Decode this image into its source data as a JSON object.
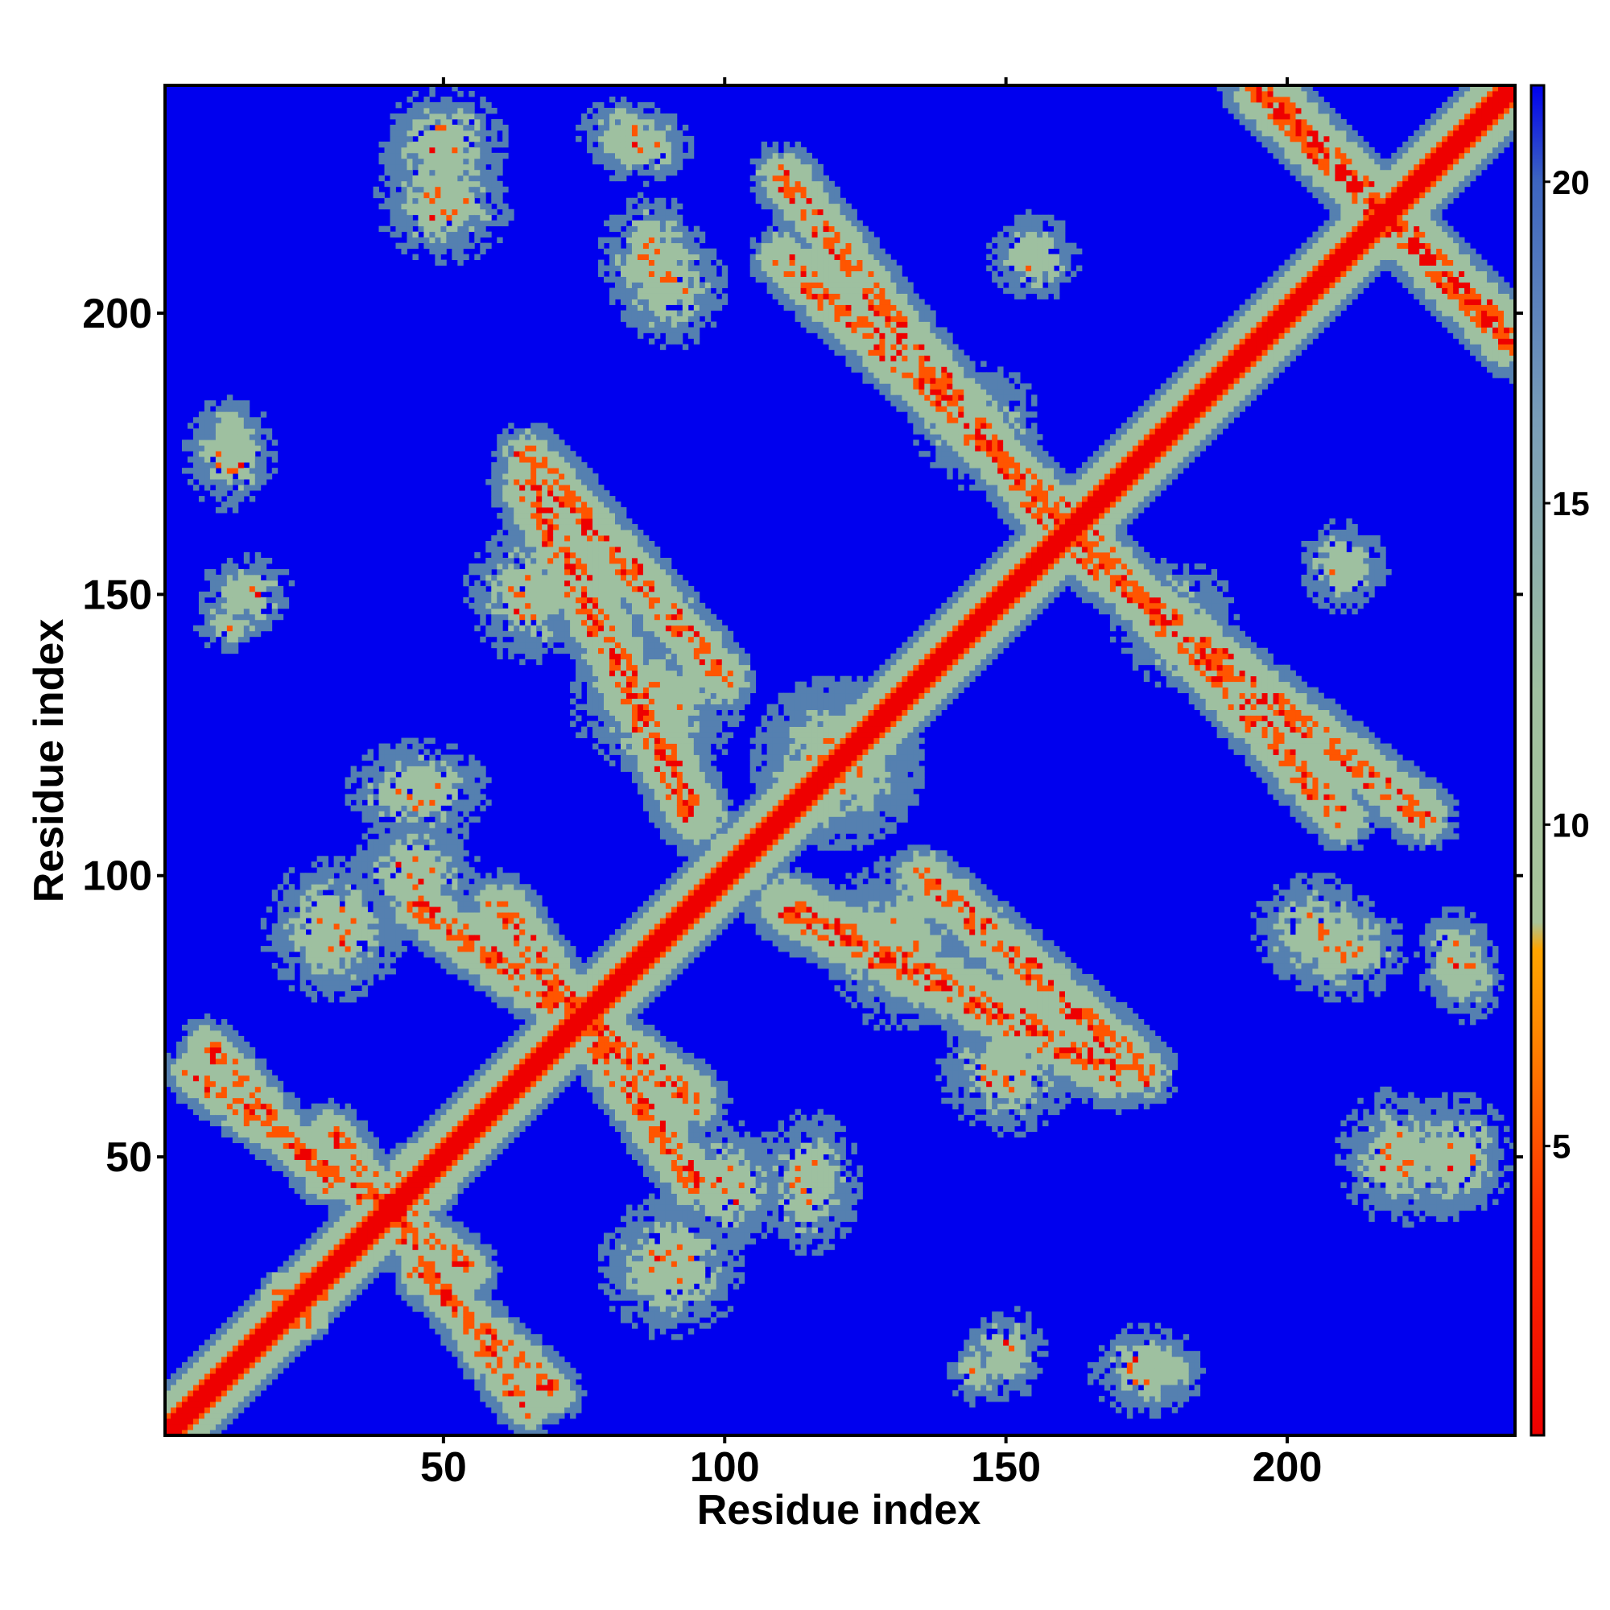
{
  "chart_data": {
    "type": "heatmap",
    "title": "",
    "xlabel": "Residue index",
    "ylabel": "Residue index",
    "n_residues": 240,
    "xlim": [
      1,
      240
    ],
    "ylim": [
      1,
      240
    ],
    "x_ticks": [
      50,
      100,
      150,
      200
    ],
    "y_ticks": [
      50,
      100,
      150,
      200
    ],
    "colorbar": {
      "range": [
        0.5,
        21.5
      ],
      "ticks": [
        5,
        10,
        15,
        20
      ],
      "colors": {
        "high": "#0000ee",
        "upper": "#5580b0",
        "mid": "#9ec0a0",
        "orange": "#ff9900",
        "orange_red": "#ff5500",
        "red": "#ee0000"
      }
    },
    "contact_blocks": [
      {
        "x": 12,
        "y": 180,
        "w": 10,
        "h": 10
      },
      {
        "x": 12,
        "y": 145,
        "w": 12,
        "h": 10
      },
      {
        "x": 50,
        "y": 230,
        "w": 22,
        "h": 20
      },
      {
        "x": 82,
        "y": 232,
        "w": 16,
        "h": 12
      },
      {
        "x": 87,
        "y": 210,
        "w": 18,
        "h": 22
      },
      {
        "x": 155,
        "y": 210,
        "w": 16,
        "h": 16
      },
      {
        "x": 45,
        "y": 115,
        "w": 25,
        "h": 18
      },
      {
        "x": 88,
        "y": 130,
        "w": 30,
        "h": 25
      },
      {
        "x": 100,
        "y": 45,
        "w": 22,
        "h": 22
      },
      {
        "x": 150,
        "y": 65,
        "w": 24,
        "h": 22
      },
      {
        "x": 180,
        "y": 145,
        "w": 22,
        "h": 22
      },
      {
        "x": 205,
        "y": 90,
        "w": 22,
        "h": 20
      },
      {
        "x": 230,
        "y": 85,
        "w": 14,
        "h": 18
      },
      {
        "x": 220,
        "y": 50,
        "w": 22,
        "h": 24
      },
      {
        "x": 150,
        "y": 15,
        "w": 14,
        "h": 16
      },
      {
        "x": 175,
        "y": 12,
        "w": 20,
        "h": 16
      },
      {
        "x": 120,
        "y": 120,
        "w": 30,
        "h": 30
      },
      {
        "x": 30,
        "y": 90,
        "w": 25,
        "h": 25
      }
    ],
    "contact_bands": [
      {
        "from": [
          5,
          65
        ],
        "to": [
          55,
          30
        ],
        "width": 10
      },
      {
        "from": [
          45,
          30
        ],
        "to": [
          70,
          8
        ],
        "width": 10
      },
      {
        "from": [
          45,
          95
        ],
        "to": [
          95,
          60
        ],
        "width": 12
      },
      {
        "from": [
          65,
          175
        ],
        "to": [
          100,
          135
        ],
        "width": 12
      },
      {
        "from": [
          110,
          225
        ],
        "to": [
          160,
          160
        ],
        "width": 12
      },
      {
        "from": [
          160,
          165
        ],
        "to": [
          210,
          110
        ],
        "width": 12
      },
      {
        "from": [
          195,
          240
        ],
        "to": [
          240,
          195
        ],
        "width": 14
      },
      {
        "from": [
          110,
          95
        ],
        "to": [
          170,
          65
        ],
        "width": 14
      },
      {
        "from": [
          20,
          25
        ],
        "to": [
          50,
          45
        ],
        "width": 8
      }
    ]
  }
}
